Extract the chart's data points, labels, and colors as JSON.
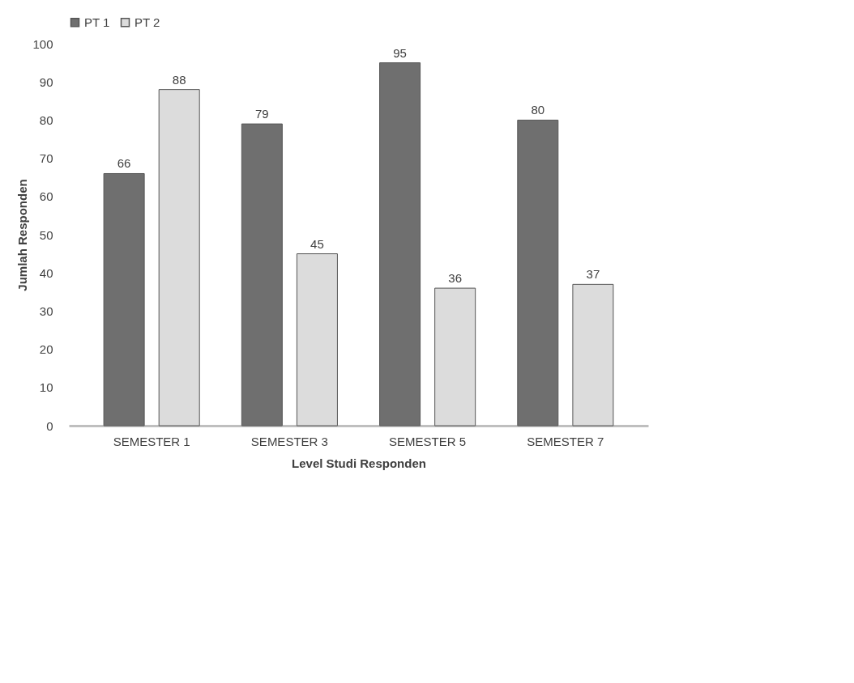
{
  "chart_data": {
    "type": "bar",
    "xlabel": "Level Studi Responden",
    "ylabel": "Jumlah Responden",
    "categories": [
      "SEMESTER 1",
      "SEMESTER 3",
      "SEMESTER 5",
      "SEMESTER 7"
    ],
    "series": [
      {
        "name": "PT 1",
        "color": "#6f6f6f",
        "values": [
          66,
          79,
          95,
          80
        ]
      },
      {
        "name": "PT 2",
        "color": "#dcdcdc",
        "values": [
          88,
          45,
          36,
          37
        ]
      }
    ],
    "ylim": [
      0,
      100
    ],
    "yticks": [
      0,
      10,
      20,
      30,
      40,
      50,
      60,
      70,
      80,
      90,
      100
    ],
    "grid": false,
    "legend": "top",
    "data_labels": true
  }
}
